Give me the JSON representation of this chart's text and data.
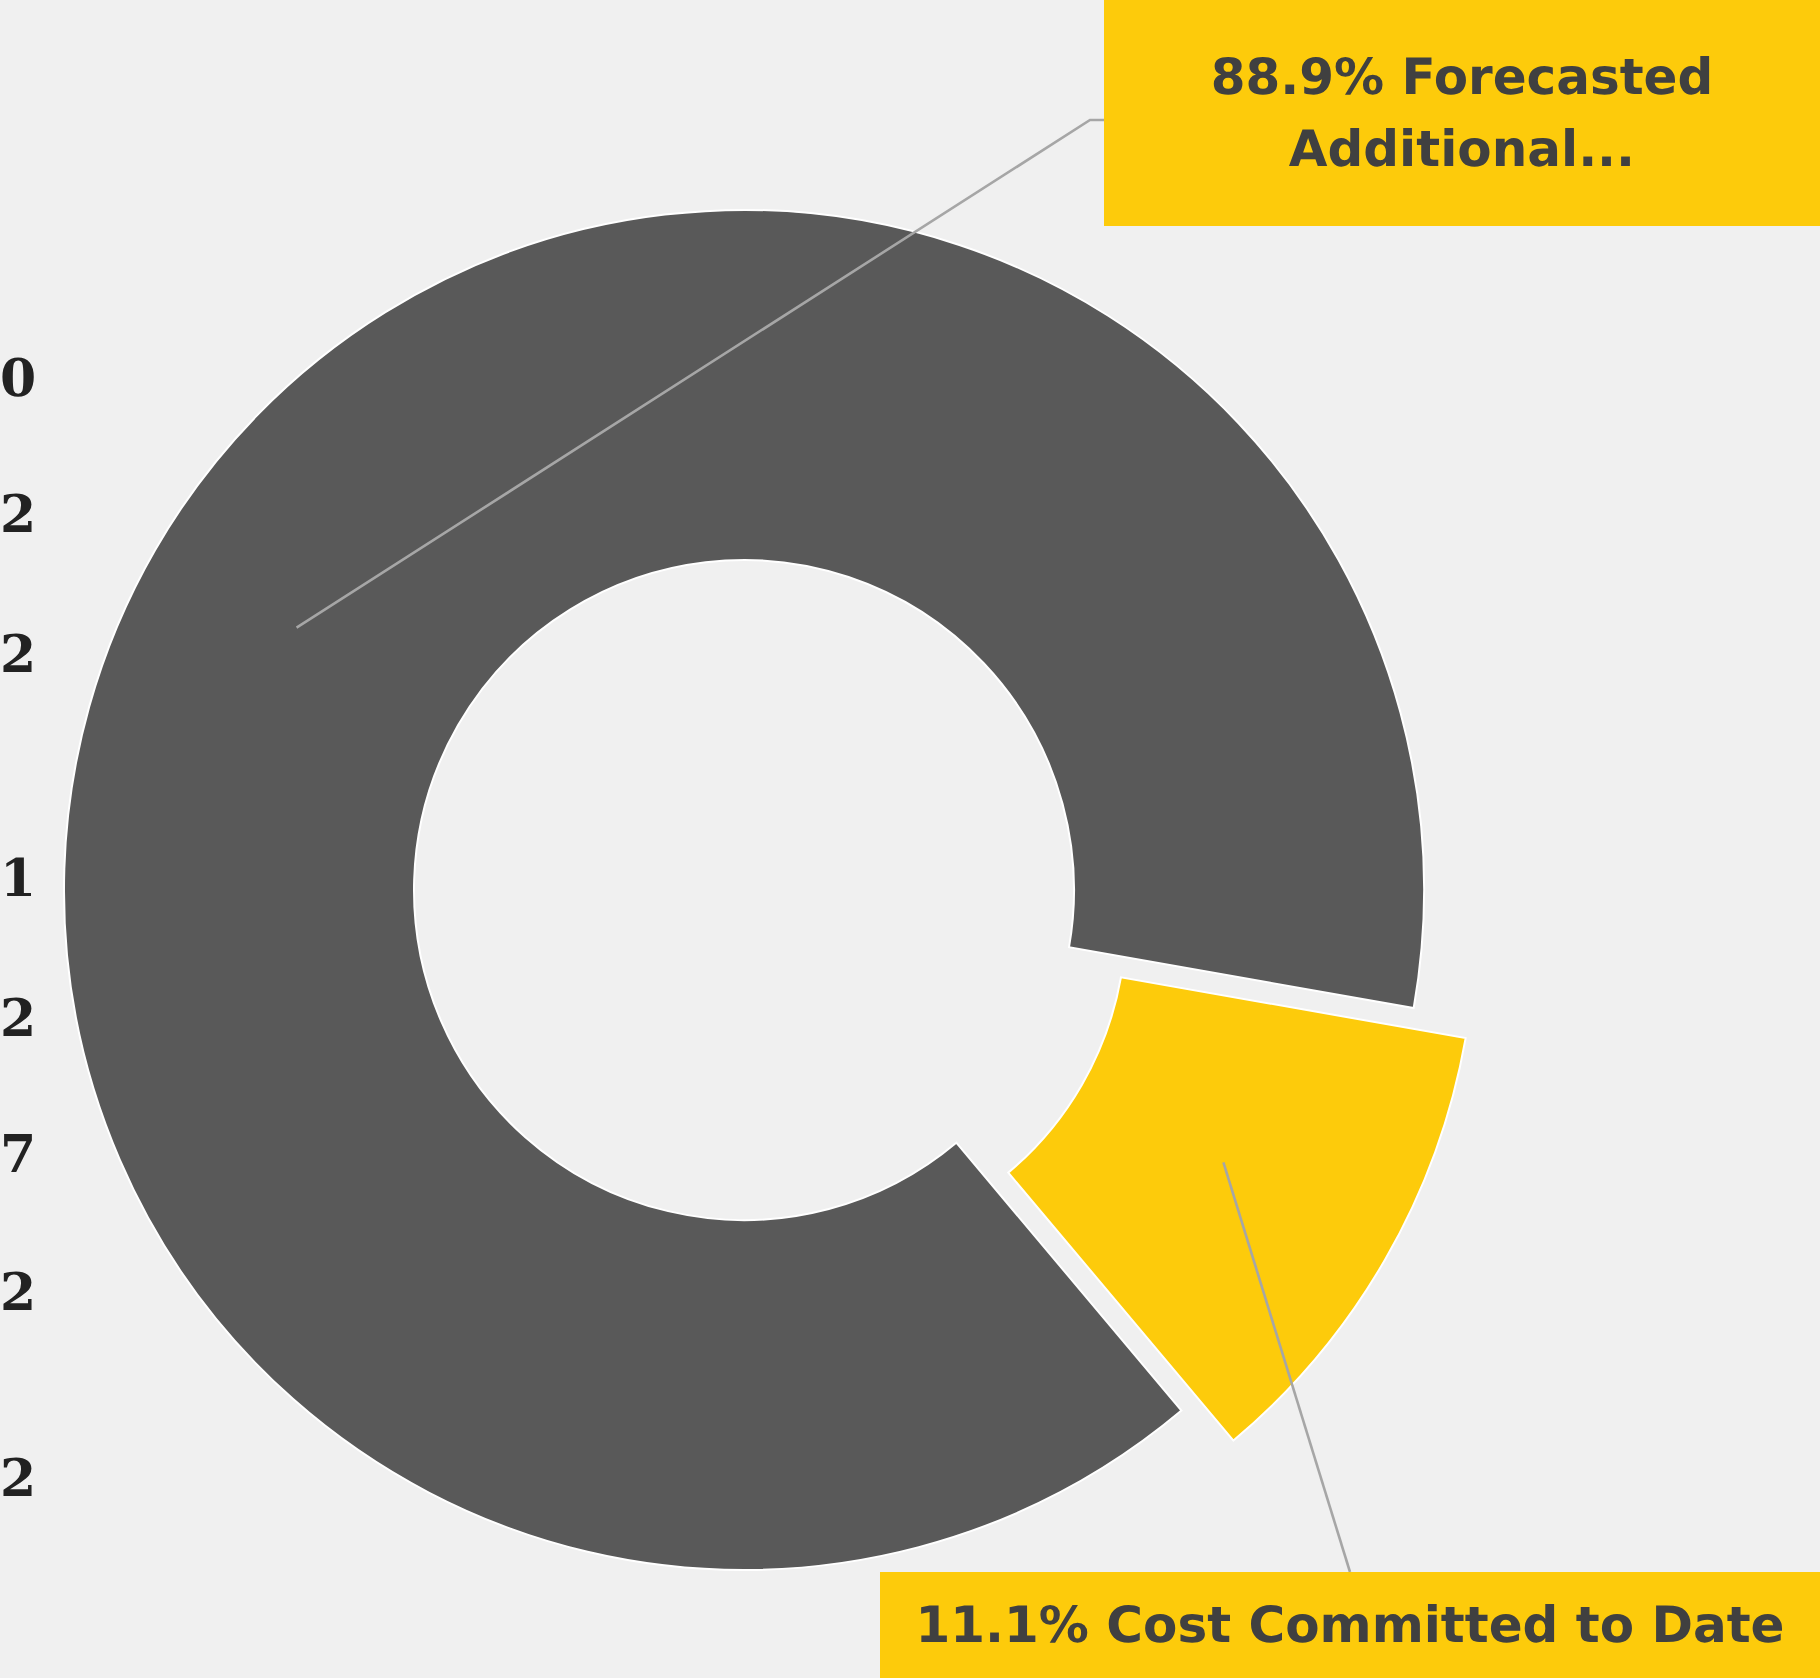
{
  "chart_data": {
    "type": "donut",
    "categories": [
      "88.9% Forecasted Additional...",
      "11.1% Cost Committed to Date"
    ],
    "values": [
      88.9,
      11.1
    ],
    "colors": [
      "#595959",
      "#fdcb0b"
    ],
    "annotations": [
      "0",
      "2",
      "2",
      "1",
      "2",
      "7",
      "2",
      "2"
    ]
  }
}
